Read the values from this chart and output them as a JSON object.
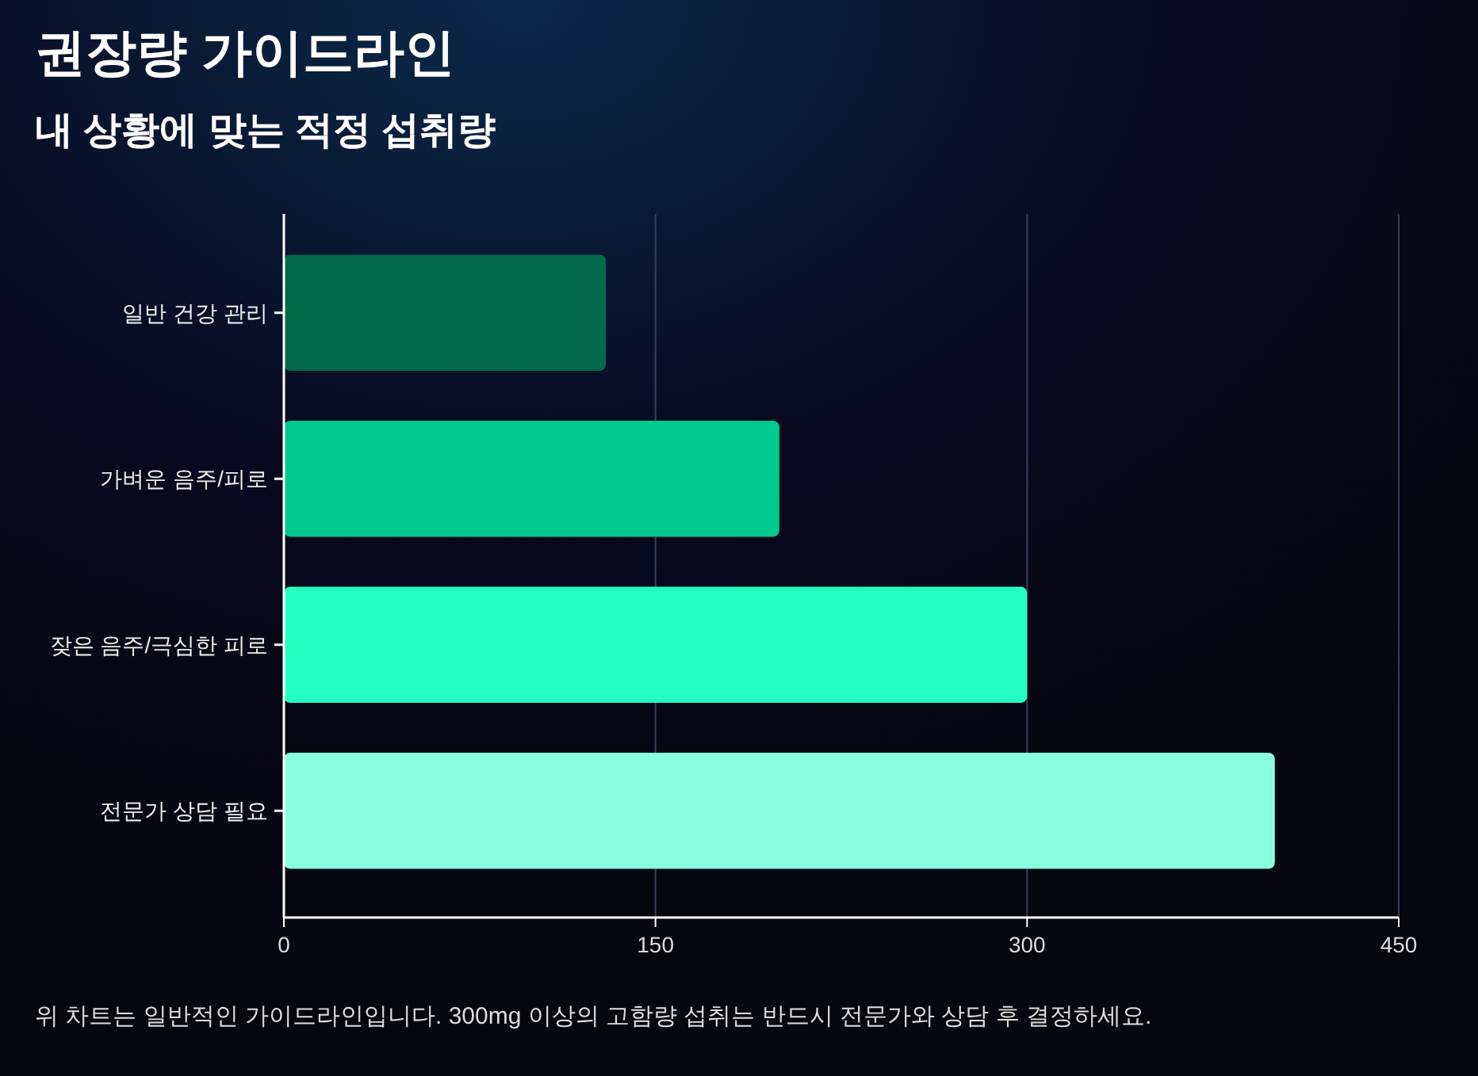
{
  "chart_data": {
    "type": "bar",
    "orientation": "horizontal",
    "title": "권장량 가이드라인",
    "subtitle": "내 상황에 맞는 적정 섭취량",
    "categories": [
      "일반 건강 관리",
      "가벼운 음주/피로",
      "잦은 음주/극심한 피로",
      "전문가 상담 필요"
    ],
    "values": [
      130,
      200,
      300,
      400
    ],
    "colors": [
      "#006a4a",
      "#00c98f",
      "#26ffc4",
      "#8affdf"
    ],
    "xlim": [
      0,
      450
    ],
    "xticks": [
      0,
      150,
      300,
      450
    ],
    "grid": "x",
    "annotations": [
      "위 차트는 일반적인 가이드라인입니다. 300mg 이상의 고함량 섭취는 반드시 전문가와 상담 후 결정하세요."
    ]
  }
}
